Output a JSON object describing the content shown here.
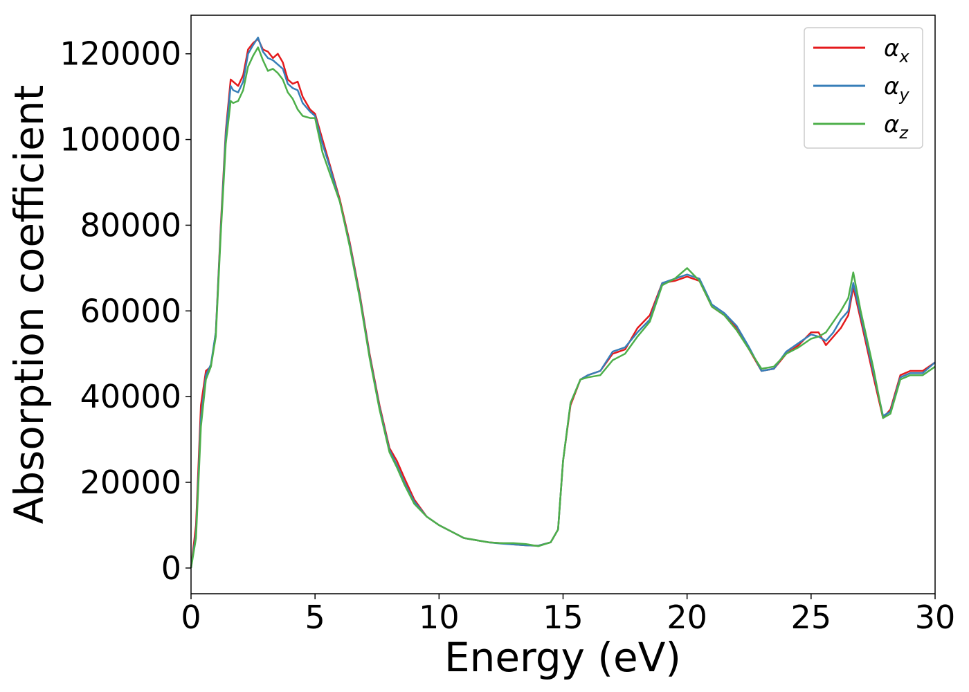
{
  "chart_data": {
    "type": "line",
    "xlabel": "Energy (eV)",
    "ylabel": "Absorption coefficient",
    "xlim": [
      0,
      30
    ],
    "ylim": [
      -6000,
      129000
    ],
    "xticks": [
      "0",
      "5",
      "10",
      "15",
      "20",
      "25",
      "30"
    ],
    "yticks": [
      "0",
      "20000",
      "40000",
      "60000",
      "80000",
      "100000",
      "120000"
    ],
    "grid": false,
    "legend_position": "top-right",
    "series": [
      {
        "name": "αx",
        "symbol": "α",
        "subscript": "x",
        "color": "#e41a1c",
        "x": [
          0,
          0.2,
          0.4,
          0.6,
          0.8,
          1.0,
          1.2,
          1.4,
          1.6,
          1.7,
          1.9,
          2.1,
          2.3,
          2.5,
          2.7,
          2.9,
          3.1,
          3.3,
          3.5,
          3.7,
          3.9,
          4.1,
          4.3,
          4.5,
          4.8,
          5.0,
          5.3,
          5.6,
          6.0,
          6.4,
          6.8,
          7.2,
          7.6,
          8.0,
          8.3,
          8.6,
          9.0,
          9.5,
          10.0,
          10.5,
          11.0,
          11.5,
          12.0,
          12.5,
          13.0,
          13.5,
          14.0,
          14.5,
          14.8,
          15.0,
          15.3,
          15.7,
          16.0,
          16.5,
          17.0,
          17.5,
          18.0,
          18.5,
          19.0,
          19.5,
          20.0,
          20.5,
          21.0,
          21.5,
          22.0,
          22.5,
          23.0,
          23.5,
          24.0,
          24.5,
          25.0,
          25.3,
          25.6,
          25.9,
          26.2,
          26.5,
          26.7,
          27.0,
          27.5,
          27.9,
          28.2,
          28.6,
          29.0,
          29.5,
          30.0
        ],
        "y": [
          0,
          10000,
          38000,
          46000,
          47000,
          55000,
          80000,
          102000,
          114000,
          113500,
          112500,
          115000,
          121000,
          122500,
          123500,
          121000,
          120500,
          119000,
          120000,
          118000,
          114000,
          113000,
          113500,
          110000,
          107000,
          106000,
          100000,
          94000,
          86000,
          76000,
          64000,
          50000,
          38000,
          28000,
          25000,
          21000,
          16000,
          12000,
          10000,
          8500,
          7000,
          6500,
          6000,
          5800,
          5500,
          5300,
          5200,
          6000,
          9000,
          25000,
          38000,
          44000,
          45000,
          46000,
          50000,
          51000,
          56000,
          59000,
          66500,
          67000,
          68000,
          67000,
          61000,
          59000,
          56000,
          51000,
          46000,
          46500,
          50000,
          52000,
          55000,
          55000,
          52000,
          54000,
          56000,
          59000,
          65500,
          58000,
          45000,
          35000,
          37000,
          45000,
          46000,
          46000,
          48000
        ]
      },
      {
        "name": "αy",
        "symbol": "α",
        "subscript": "y",
        "color": "#377eb8",
        "x": [
          0,
          0.2,
          0.4,
          0.6,
          0.8,
          1.0,
          1.2,
          1.4,
          1.6,
          1.7,
          1.9,
          2.1,
          2.3,
          2.5,
          2.7,
          2.9,
          3.1,
          3.3,
          3.5,
          3.7,
          3.9,
          4.1,
          4.3,
          4.5,
          4.8,
          5.0,
          5.3,
          5.6,
          6.0,
          6.4,
          6.8,
          7.2,
          7.6,
          8.0,
          8.3,
          8.6,
          9.0,
          9.5,
          10.0,
          10.5,
          11.0,
          11.5,
          12.0,
          12.5,
          13.0,
          13.5,
          14.0,
          14.5,
          14.8,
          15.0,
          15.3,
          15.7,
          16.0,
          16.5,
          17.0,
          17.5,
          18.0,
          18.5,
          19.0,
          19.5,
          20.0,
          20.5,
          21.0,
          21.5,
          22.0,
          22.5,
          23.0,
          23.5,
          24.0,
          24.5,
          25.0,
          25.3,
          25.6,
          25.9,
          26.2,
          26.5,
          26.7,
          27.0,
          27.5,
          27.9,
          28.2,
          28.6,
          29.0,
          29.5,
          30.0
        ],
        "y": [
          0,
          8000,
          35000,
          45000,
          47500,
          55000,
          79000,
          101000,
          112500,
          111500,
          111000,
          113500,
          120000,
          122000,
          123800,
          120500,
          119000,
          118500,
          117500,
          116500,
          113000,
          112000,
          111500,
          108500,
          106500,
          105500,
          99000,
          93500,
          85500,
          75500,
          63500,
          49500,
          37500,
          27500,
          24000,
          20000,
          15500,
          12000,
          10000,
          8500,
          7000,
          6500,
          6000,
          5700,
          5500,
          5300,
          5200,
          6000,
          9000,
          25000,
          38500,
          44000,
          45000,
          46000,
          50500,
          51500,
          55000,
          58000,
          66500,
          67500,
          68500,
          67500,
          61500,
          59500,
          56500,
          51500,
          46000,
          46500,
          50500,
          52500,
          54500,
          54000,
          53000,
          55000,
          58000,
          60000,
          66500,
          59000,
          46000,
          35500,
          36500,
          44500,
          45500,
          45500,
          48000
        ]
      },
      {
        "name": "αz",
        "symbol": "α",
        "subscript": "z",
        "color": "#4daf4a",
        "x": [
          0,
          0.2,
          0.4,
          0.6,
          0.8,
          1.0,
          1.2,
          1.4,
          1.6,
          1.7,
          1.9,
          2.1,
          2.3,
          2.5,
          2.7,
          2.9,
          3.1,
          3.3,
          3.5,
          3.7,
          3.9,
          4.1,
          4.3,
          4.5,
          4.8,
          5.0,
          5.3,
          5.6,
          6.0,
          6.4,
          6.8,
          7.2,
          7.6,
          8.0,
          8.3,
          8.6,
          9.0,
          9.5,
          10.0,
          10.5,
          11.0,
          11.5,
          12.0,
          12.5,
          13.0,
          13.5,
          14.0,
          14.5,
          14.8,
          15.0,
          15.3,
          15.7,
          16.0,
          16.5,
          17.0,
          17.5,
          18.0,
          18.5,
          19.0,
          19.5,
          20.0,
          20.5,
          21.0,
          21.5,
          22.0,
          22.5,
          23.0,
          23.5,
          24.0,
          24.5,
          25.0,
          25.3,
          25.6,
          25.9,
          26.2,
          26.5,
          26.7,
          27.0,
          27.5,
          27.9,
          28.2,
          28.6,
          29.0,
          29.5,
          30.0
        ],
        "y": [
          0,
          7000,
          33000,
          44000,
          47000,
          54000,
          78000,
          99000,
          109000,
          108500,
          109000,
          111500,
          117000,
          119500,
          121500,
          118500,
          116000,
          116500,
          115500,
          114000,
          111000,
          109500,
          107000,
          105500,
          105000,
          105000,
          97000,
          92000,
          85500,
          75000,
          63000,
          49000,
          37000,
          27000,
          23500,
          19500,
          15000,
          12000,
          10000,
          8500,
          7000,
          6500,
          6000,
          5800,
          5800,
          5600,
          5100,
          6000,
          9000,
          25000,
          38500,
          44000,
          44500,
          45000,
          48500,
          50000,
          54000,
          57500,
          66000,
          67500,
          70000,
          67000,
          61000,
          59000,
          55500,
          51000,
          46500,
          47000,
          50000,
          51500,
          53500,
          54000,
          55000,
          57500,
          60000,
          63000,
          69000,
          60000,
          47000,
          35000,
          36000,
          44000,
          45000,
          45000,
          47000
        ]
      }
    ]
  }
}
